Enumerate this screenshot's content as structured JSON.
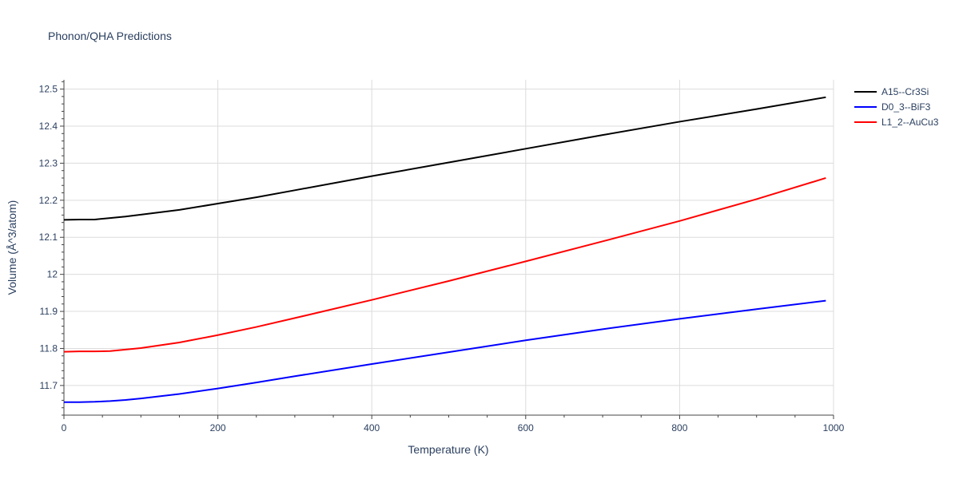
{
  "chart_data": {
    "type": "line",
    "title": "Phonon/QHA Predictions",
    "xlabel": "Temperature (K)",
    "ylabel": "Volume (Å^3/atom)",
    "xlim": [
      0,
      1000
    ],
    "ylim": [
      11.62,
      12.525
    ],
    "x_ticks": [
      0,
      200,
      400,
      600,
      800,
      1000
    ],
    "x_tick_labels": [
      "0",
      "200",
      "400",
      "600",
      "800",
      "1000"
    ],
    "y_ticks": [
      11.7,
      11.8,
      11.9,
      12.0,
      12.1,
      12.2,
      12.3,
      12.4,
      12.5
    ],
    "y_tick_labels": [
      "11.7",
      "11.8",
      "11.9",
      "12",
      "12.1",
      "12.2",
      "12.3",
      "12.4",
      "12.5"
    ],
    "grid": true,
    "legend_position": "top-right",
    "series": [
      {
        "name": "A15--Cr3Si",
        "color": "#000000",
        "x": [
          0,
          20,
          40,
          60,
          80,
          100,
          150,
          200,
          250,
          300,
          400,
          500,
          600,
          700,
          800,
          900,
          990
        ],
        "y": [
          12.147,
          12.148,
          12.148,
          12.152,
          12.156,
          12.161,
          12.174,
          12.191,
          12.208,
          12.227,
          12.265,
          12.302,
          12.339,
          12.376,
          12.412,
          12.446,
          12.478
        ]
      },
      {
        "name": "D0_3--BiF3",
        "color": "#0000ff",
        "x": [
          0,
          20,
          40,
          60,
          80,
          100,
          150,
          200,
          250,
          300,
          400,
          500,
          600,
          700,
          800,
          900,
          990
        ],
        "y": [
          11.655,
          11.655,
          11.656,
          11.658,
          11.661,
          11.665,
          11.677,
          11.692,
          11.708,
          11.725,
          11.758,
          11.79,
          11.822,
          11.852,
          11.88,
          11.906,
          11.929
        ]
      },
      {
        "name": "L1_2--AuCu3",
        "color": "#ff0000",
        "x": [
          0,
          20,
          40,
          60,
          80,
          100,
          150,
          200,
          250,
          300,
          400,
          500,
          600,
          700,
          800,
          900,
          990
        ],
        "y": [
          11.791,
          11.792,
          11.792,
          11.793,
          11.797,
          11.801,
          11.816,
          11.836,
          11.858,
          11.882,
          11.931,
          11.982,
          12.035,
          12.089,
          12.144,
          12.203,
          12.26
        ]
      }
    ]
  }
}
